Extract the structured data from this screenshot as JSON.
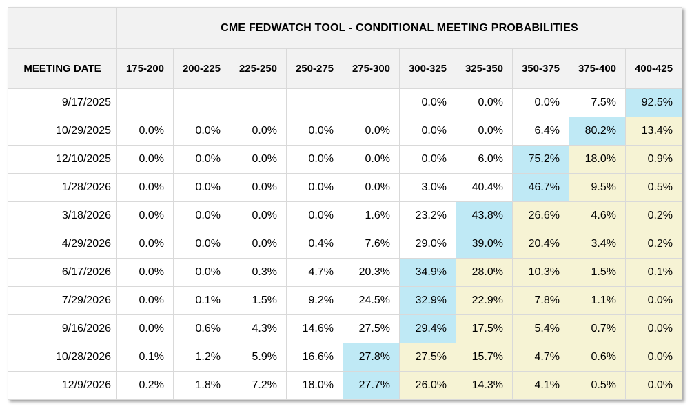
{
  "colors": {
    "highlight_cyan": "#bfe9f5",
    "highlight_yellow": "#f6f3d4",
    "header_bg": "#f2f2f2",
    "grid_line": "#d9d9d9"
  },
  "chart_data": {
    "type": "table",
    "title": "CME FEDWATCH TOOL - CONDITIONAL MEETING PROBABILITIES",
    "meeting_date_header": "MEETING DATE",
    "rate_range_headers": [
      "175-200",
      "200-225",
      "225-250",
      "250-275",
      "275-300",
      "300-325",
      "325-350",
      "350-375",
      "375-400",
      "400-425"
    ],
    "rows": [
      {
        "date": "9/17/2025",
        "values": [
          "",
          "",
          "",
          "",
          "",
          "0.0%",
          "0.0%",
          "0.0%",
          "7.5%",
          "92.5%"
        ],
        "highlights": [
          "",
          "",
          "",
          "",
          "",
          "",
          "",
          "",
          "",
          "cyan"
        ]
      },
      {
        "date": "10/29/2025",
        "values": [
          "0.0%",
          "0.0%",
          "0.0%",
          "0.0%",
          "0.0%",
          "0.0%",
          "0.0%",
          "6.4%",
          "80.2%",
          "13.4%"
        ],
        "highlights": [
          "",
          "",
          "",
          "",
          "",
          "",
          "",
          "",
          "cyan",
          "yellow"
        ]
      },
      {
        "date": "12/10/2025",
        "values": [
          "0.0%",
          "0.0%",
          "0.0%",
          "0.0%",
          "0.0%",
          "0.0%",
          "6.0%",
          "75.2%",
          "18.0%",
          "0.9%"
        ],
        "highlights": [
          "",
          "",
          "",
          "",
          "",
          "",
          "",
          "cyan",
          "yellow",
          "yellow"
        ]
      },
      {
        "date": "1/28/2026",
        "values": [
          "0.0%",
          "0.0%",
          "0.0%",
          "0.0%",
          "0.0%",
          "3.0%",
          "40.4%",
          "46.7%",
          "9.5%",
          "0.5%"
        ],
        "highlights": [
          "",
          "",
          "",
          "",
          "",
          "",
          "",
          "cyan",
          "yellow",
          "yellow"
        ]
      },
      {
        "date": "3/18/2026",
        "values": [
          "0.0%",
          "0.0%",
          "0.0%",
          "0.0%",
          "1.6%",
          "23.2%",
          "43.8%",
          "26.6%",
          "4.6%",
          "0.2%"
        ],
        "highlights": [
          "",
          "",
          "",
          "",
          "",
          "",
          "cyan",
          "yellow",
          "yellow",
          "yellow"
        ]
      },
      {
        "date": "4/29/2026",
        "values": [
          "0.0%",
          "0.0%",
          "0.0%",
          "0.4%",
          "7.6%",
          "29.0%",
          "39.0%",
          "20.4%",
          "3.4%",
          "0.2%"
        ],
        "highlights": [
          "",
          "",
          "",
          "",
          "",
          "",
          "cyan",
          "yellow",
          "yellow",
          "yellow"
        ]
      },
      {
        "date": "6/17/2026",
        "values": [
          "0.0%",
          "0.0%",
          "0.3%",
          "4.7%",
          "20.3%",
          "34.9%",
          "28.0%",
          "10.3%",
          "1.5%",
          "0.1%"
        ],
        "highlights": [
          "",
          "",
          "",
          "",
          "",
          "cyan",
          "yellow",
          "yellow",
          "yellow",
          "yellow"
        ]
      },
      {
        "date": "7/29/2026",
        "values": [
          "0.0%",
          "0.1%",
          "1.5%",
          "9.2%",
          "24.5%",
          "32.9%",
          "22.9%",
          "7.8%",
          "1.1%",
          "0.0%"
        ],
        "highlights": [
          "",
          "",
          "",
          "",
          "",
          "cyan",
          "yellow",
          "yellow",
          "yellow",
          "yellow"
        ]
      },
      {
        "date": "9/16/2026",
        "values": [
          "0.0%",
          "0.6%",
          "4.3%",
          "14.6%",
          "27.5%",
          "29.4%",
          "17.5%",
          "5.4%",
          "0.7%",
          "0.0%"
        ],
        "highlights": [
          "",
          "",
          "",
          "",
          "",
          "cyan",
          "yellow",
          "yellow",
          "yellow",
          "yellow"
        ]
      },
      {
        "date": "10/28/2026",
        "values": [
          "0.1%",
          "1.2%",
          "5.9%",
          "16.6%",
          "27.8%",
          "27.5%",
          "15.7%",
          "4.7%",
          "0.6%",
          "0.0%"
        ],
        "highlights": [
          "",
          "",
          "",
          "",
          "cyan",
          "yellow",
          "yellow",
          "yellow",
          "yellow",
          "yellow"
        ]
      },
      {
        "date": "12/9/2026",
        "values": [
          "0.2%",
          "1.8%",
          "7.2%",
          "18.0%",
          "27.7%",
          "26.0%",
          "14.3%",
          "4.1%",
          "0.5%",
          "0.0%"
        ],
        "highlights": [
          "",
          "",
          "",
          "",
          "cyan",
          "yellow",
          "yellow",
          "yellow",
          "yellow",
          "yellow"
        ]
      }
    ]
  }
}
